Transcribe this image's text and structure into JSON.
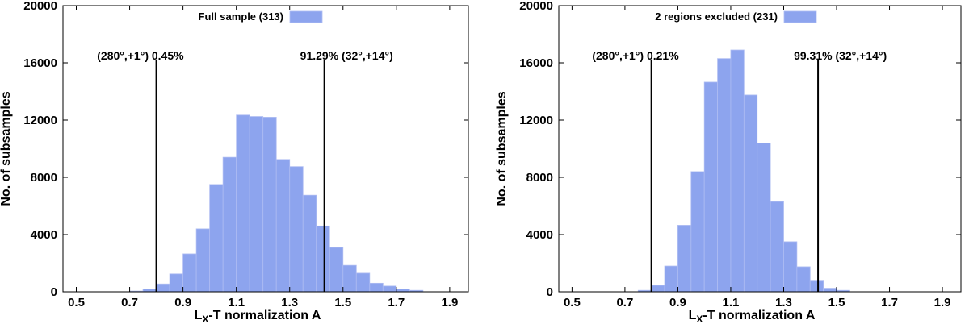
{
  "chart_data": [
    {
      "type": "bar",
      "legend": "Full sample (313)",
      "legend_position": "top-center",
      "xlabel": "L",
      "xlabel_sub": "X",
      "xlabel_rest": "-T normalization A",
      "ylabel": "No. of subsamples",
      "xlim": [
        0.45,
        1.97
      ],
      "ylim": [
        0,
        20000
      ],
      "xticks": [
        "0.5",
        "0.7",
        "0.9",
        "1.1",
        "1.3",
        "1.5",
        "1.7",
        "1.9"
      ],
      "xtick_values": [
        0.5,
        0.7,
        0.9,
        1.1,
        1.3,
        1.5,
        1.7,
        1.9
      ],
      "yticks": [
        "0",
        "4000",
        "8000",
        "12000",
        "16000",
        "20000"
      ],
      "ytick_values": [
        0,
        4000,
        8000,
        12000,
        16000,
        20000
      ],
      "bin_start": 0.7,
      "bin_width": 0.05,
      "values": [
        50,
        200,
        550,
        1250,
        2650,
        4400,
        7500,
        9400,
        12350,
        12250,
        12200,
        9250,
        8750,
        6750,
        4600,
        3100,
        1850,
        1300,
        600,
        400,
        200,
        100
      ],
      "bar_color": "#8da4ee",
      "vlines": [
        {
          "x": 0.8,
          "label": "(280°,+1°) 0.45%",
          "label_y": 16500
        },
        {
          "x": 1.43,
          "label": "91.29% (32°,+14°)",
          "label_y": 16500
        }
      ]
    },
    {
      "type": "bar",
      "legend": "2 regions excluded (231)",
      "legend_position": "top-center",
      "xlabel": "L",
      "xlabel_sub": "X",
      "xlabel_rest": "-T normalization A",
      "ylabel": "No. of subsamples",
      "xlim": [
        0.45,
        1.97
      ],
      "ylim": [
        0,
        20000
      ],
      "xticks": [
        "0.5",
        "0.7",
        "0.9",
        "1.1",
        "1.3",
        "1.5",
        "1.7",
        "1.9"
      ],
      "xtick_values": [
        0.5,
        0.7,
        0.9,
        1.1,
        1.3,
        1.5,
        1.7,
        1.9
      ],
      "yticks": [
        "0",
        "4000",
        "8000",
        "12000",
        "16000",
        "20000"
      ],
      "ytick_values": [
        0,
        4000,
        8000,
        12000,
        16000,
        20000
      ],
      "bin_start": 0.75,
      "bin_width": 0.05,
      "values": [
        100,
        450,
        1800,
        4650,
        8400,
        14650,
        16300,
        16900,
        13750,
        10400,
        6300,
        3500,
        1750,
        750,
        250,
        100
      ],
      "bar_color": "#8da4ee",
      "vlines": [
        {
          "x": 0.8,
          "label": "(280°,+1°) 0.21%",
          "label_y": 16500
        },
        {
          "x": 1.43,
          "label": "99.31% (32°,+14°)",
          "label_y": 16500
        }
      ]
    }
  ]
}
